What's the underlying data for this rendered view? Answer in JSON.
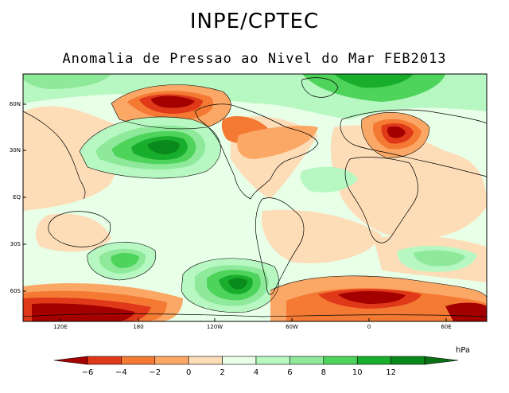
{
  "header": {
    "title": "INPE/CPTEC",
    "subtitle": "Anomalia de Pressao ao Nivel do Mar FEB2013"
  },
  "axes": {
    "lat_ticks": [
      "60N",
      "30N",
      "EQ",
      "30S",
      "60S"
    ],
    "lon_ticks": [
      "120E",
      "180",
      "120W",
      "60W",
      "0",
      "60E"
    ]
  },
  "colorbar": {
    "unit": "hPa",
    "labels": [
      "−6",
      "−4",
      "−2",
      "0",
      "2",
      "4",
      "6",
      "8",
      "10",
      "12"
    ],
    "colors": [
      "#a50000",
      "#e0391a",
      "#f47a34",
      "#fba765",
      "#fdddb8",
      "#e8ffe8",
      "#b7f7c2",
      "#8fe99b",
      "#4ed35b",
      "#18ae2c",
      "#0a8a1c",
      "#0a6e14"
    ]
  },
  "map_colors": {
    "ocean_neutral": "#e8ffe8",
    "land_neutral": "#fdddb8",
    "neg2": "#fba765",
    "neg4": "#f47a34",
    "neg6": "#e0391a",
    "neg8": "#a50000",
    "pos2": "#b7f7c2",
    "pos4": "#8fe99b",
    "pos6": "#4ed35b",
    "pos8": "#18ae2c",
    "pos10": "#0a8a1c",
    "coast": "#000000"
  }
}
